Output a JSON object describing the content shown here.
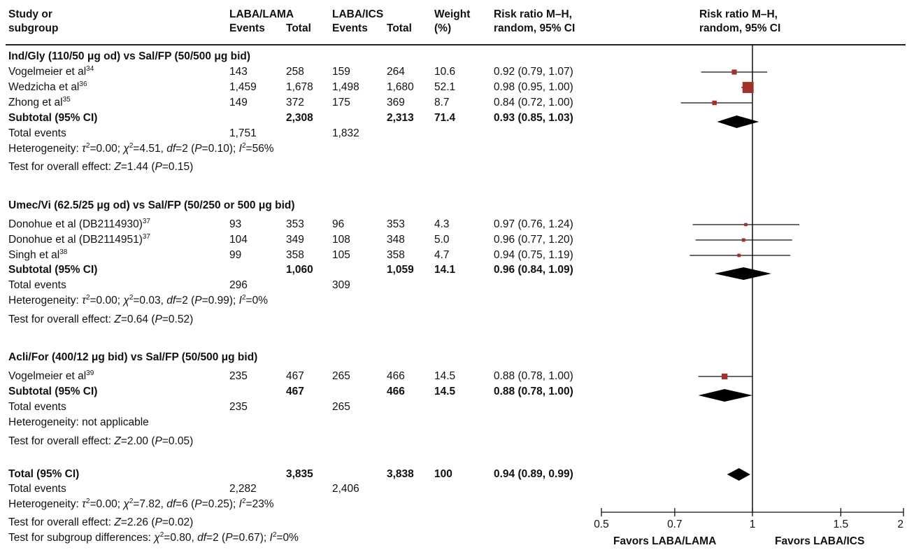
{
  "headers": {
    "study": [
      "Study or",
      "subgroup"
    ],
    "laba_lama": "LABA/LAMA",
    "laba_ics": "LABA/ICS",
    "events": "Events",
    "total": "Total",
    "weight": [
      "Weight",
      "(%)"
    ],
    "rr_col": [
      "Risk ratio M–H,",
      "random, 95% CI"
    ],
    "rr_plot": [
      "Risk ratio M–H,",
      "random, 95% CI"
    ]
  },
  "groups": [
    {
      "title": "Ind/Gly (110/50 μg od) vs Sal/FP (50/500 μg bid)",
      "studies": [
        {
          "name": "Vogelmeier et al",
          "ref": "34",
          "e1": "143",
          "t1": "258",
          "e2": "159",
          "t2": "264",
          "w": "10.6",
          "ci": "0.92 (0.79, 1.07)"
        },
        {
          "name": "Wedzicha et al",
          "ref": "36",
          "e1": "1,459",
          "t1": "1,678",
          "e2": "1,498",
          "t2": "1,680",
          "w": "52.1",
          "ci": "0.98 (0.95, 1.00)"
        },
        {
          "name": "Zhong et al",
          "ref": "35",
          "e1": "149",
          "t1": "372",
          "e2": "175",
          "t2": "369",
          "w": "8.7",
          "ci": "0.84 (0.72, 1.00)"
        }
      ],
      "subtotal": {
        "label": "Subtotal (95% CI)",
        "t1": "2,308",
        "t2": "2,313",
        "w": "71.4",
        "ci": "0.93 (0.85, 1.03)"
      },
      "total_events": {
        "label": "Total events",
        "e1": "1,751",
        "e2": "1,832"
      },
      "heterogeneity": {
        "prefix": "Heterogeneity: ",
        "tau": "τ",
        "tau_val": "=0.00; ",
        "chi": "χ",
        "chi_val": "=4.51, ",
        "df": "df",
        "df_val": "=2 (",
        "p": "P",
        "p_val": "=0.10); ",
        "i": "I",
        "i_val": "=56%"
      },
      "overall": {
        "prefix": "Test for overall effect: ",
        "z": "Z",
        "z_val": "=1.44 (",
        "p": "P",
        "p_val": "=0.15)"
      }
    },
    {
      "title": "Umec/Vi (62.5/25 μg od) vs Sal/FP (50/250 or 500 μg bid)",
      "studies": [
        {
          "name": "Donohue et al (DB2114930)",
          "ref": "37",
          "e1": "93",
          "t1": "353",
          "e2": "96",
          "t2": "353",
          "w": "4.3",
          "ci": "0.97 (0.76, 1.24)"
        },
        {
          "name": "Donohue et al (DB2114951)",
          "ref": "37",
          "e1": "104",
          "t1": "349",
          "e2": "108",
          "t2": "348",
          "w": "5.0",
          "ci": "0.96 (0.77, 1.20)"
        },
        {
          "name": "Singh et al",
          "ref": "38",
          "e1": "99",
          "t1": "358",
          "e2": "105",
          "t2": "358",
          "w": "4.7",
          "ci": "0.94 (0.75, 1.19)"
        }
      ],
      "subtotal": {
        "label": "Subtotal (95% CI)",
        "t1": "1,060",
        "t2": "1,059",
        "w": "14.1",
        "ci": "0.96 (0.84, 1.09)"
      },
      "total_events": {
        "label": "Total events",
        "e1": "296",
        "e2": "309"
      },
      "heterogeneity": {
        "prefix": "Heterogeneity: ",
        "tau": "τ",
        "tau_val": "=0.00; ",
        "chi": "χ",
        "chi_val": "=0.03, ",
        "df": "df",
        "df_val": "=2 (",
        "p": "P",
        "p_val": "=0.99); ",
        "i": "I",
        "i_val": "=0%"
      },
      "overall": {
        "prefix": "Test for overall effect: ",
        "z": "Z",
        "z_val": "=0.64 (",
        "p": "P",
        "p_val": "=0.52)"
      }
    },
    {
      "title": "Acli/For (400/12 μg bid) vs Sal/FP (50/500 μg bid)",
      "studies": [
        {
          "name": "Vogelmeier et al",
          "ref": "39",
          "e1": "235",
          "t1": "467",
          "e2": "265",
          "t2": "466",
          "w": "14.5",
          "ci": "0.88 (0.78, 1.00)"
        }
      ],
      "subtotal": {
        "label": "Subtotal (95% CI)",
        "t1": "467",
        "t2": "466",
        "w": "14.5",
        "ci": "0.88 (0.78, 1.00)"
      },
      "total_events": {
        "label": "Total events",
        "e1": "235",
        "e2": "265"
      },
      "heterogeneity_text": "Heterogeneity: not applicable",
      "overall": {
        "prefix": "Test for overall effect: ",
        "z": "Z",
        "z_val": "=2.00 (",
        "p": "P",
        "p_val": "=0.05)"
      }
    }
  ],
  "total": {
    "label": "Total (95% CI)",
    "t1": "3,835",
    "t2": "3,838",
    "w": "100",
    "ci": "0.94 (0.89, 0.99)",
    "total_events": {
      "label": "Total events",
      "e1": "2,282",
      "e2": "2,406"
    },
    "heterogeneity": {
      "prefix": "Heterogeneity: ",
      "tau": "τ",
      "tau_val": "=0.00; ",
      "chi": "χ",
      "chi_val": "=7.82, ",
      "df": "df",
      "df_val": "=6 (",
      "p": "P",
      "p_val": "=0.25); ",
      "i": "I",
      "i_val": "=23%"
    },
    "overall": {
      "prefix": "Test for overall effect: ",
      "z": "Z",
      "z_val": "=2.26 (",
      "p": "P",
      "p_val": "=0.02)"
    },
    "subgroup": {
      "prefix": "Test for subgroup differences: ",
      "chi": "χ",
      "chi_val": "=0.80, ",
      "df": "df",
      "df_val": "=2 (",
      "p": "P",
      "p_val": "=0.67); ",
      "i": "I",
      "i_val": "=0%"
    }
  },
  "chart_data": {
    "type": "forest",
    "x_scale": "log",
    "xlim": [
      0.5,
      2
    ],
    "ticks": [
      0.5,
      0.7,
      1,
      1.5,
      2
    ],
    "tick_labels": [
      "0.5",
      "0.7",
      "1",
      "1.5",
      "2"
    ],
    "favors_left": "Favors LABA/LAMA",
    "favors_right": "Favors LABA/ICS",
    "marker_color": "#a0322a",
    "studies": [
      {
        "rr": 0.92,
        "lo": 0.79,
        "hi": 1.07,
        "weight": 10.6
      },
      {
        "rr": 0.98,
        "lo": 0.95,
        "hi": 1.0,
        "weight": 52.1
      },
      {
        "rr": 0.84,
        "lo": 0.72,
        "hi": 1.0,
        "weight": 8.7
      },
      {
        "rr": 0.97,
        "lo": 0.76,
        "hi": 1.24,
        "weight": 4.3
      },
      {
        "rr": 0.96,
        "lo": 0.77,
        "hi": 1.2,
        "weight": 5.0
      },
      {
        "rr": 0.94,
        "lo": 0.75,
        "hi": 1.19,
        "weight": 4.7
      },
      {
        "rr": 0.88,
        "lo": 0.78,
        "hi": 1.0,
        "weight": 14.5
      }
    ],
    "diamonds": [
      {
        "rr": 0.93,
        "lo": 0.85,
        "hi": 1.03
      },
      {
        "rr": 0.96,
        "lo": 0.84,
        "hi": 1.09
      },
      {
        "rr": 0.88,
        "lo": 0.78,
        "hi": 1.0
      },
      {
        "rr": 0.94,
        "lo": 0.89,
        "hi": 0.99
      }
    ]
  }
}
